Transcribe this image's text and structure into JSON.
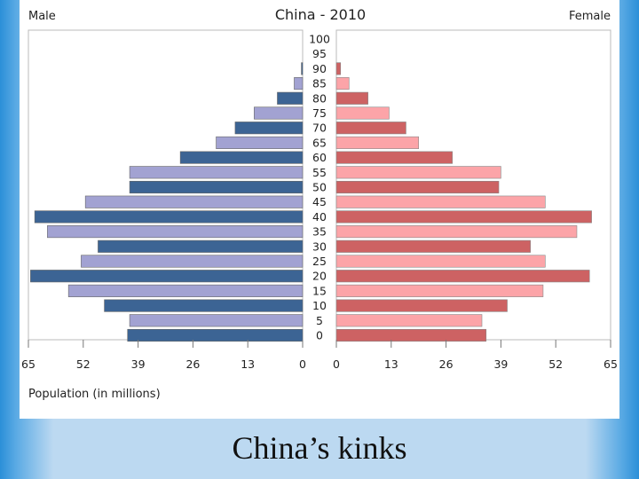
{
  "chart_data": {
    "type": "bar",
    "subtype": "population-pyramid",
    "title": "China - 2010",
    "left_label": "Male",
    "right_label": "Female",
    "xlabel": "Population (in millions)",
    "xlim": [
      0,
      65
    ],
    "x_ticks": [
      "65",
      "52",
      "39",
      "26",
      "13",
      "0",
      "0",
      "13",
      "26",
      "39",
      "52",
      "65"
    ],
    "age_groups": [
      "0",
      "5",
      "10",
      "15",
      "20",
      "25",
      "30",
      "35",
      "40",
      "45",
      "50",
      "55",
      "60",
      "65",
      "70",
      "75",
      "80",
      "85",
      "90",
      "95",
      "100"
    ],
    "series": [
      {
        "name": "Male",
        "values": [
          41.5,
          41.0,
          47.0,
          55.5,
          64.5,
          52.5,
          48.5,
          60.5,
          63.5,
          51.5,
          41.0,
          41.0,
          29.0,
          20.5,
          16.0,
          11.5,
          6.0,
          2.0,
          0.3,
          0,
          0
        ]
      },
      {
        "name": "Female",
        "values": [
          35.5,
          34.5,
          40.5,
          49.0,
          60.0,
          49.5,
          46.0,
          57.0,
          60.5,
          49.5,
          38.5,
          39.0,
          27.5,
          19.5,
          16.5,
          12.5,
          7.5,
          3.0,
          1.0,
          0,
          0
        ]
      }
    ],
    "colors": {
      "male_dark": "#3c6494",
      "male_light": "#a2a2d2",
      "female_dark": "#cd6263",
      "female_light": "#fca4a8"
    },
    "grid": false
  },
  "caption": "China’s kinks"
}
